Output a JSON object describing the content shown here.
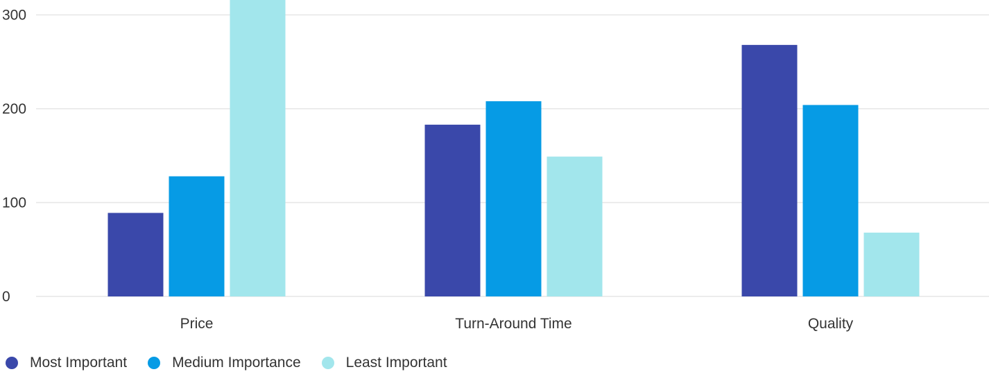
{
  "chart_data": {
    "type": "bar",
    "categories": [
      "Price",
      "Turn-Around Time",
      "Quality"
    ],
    "series": [
      {
        "name": "Most Important",
        "color": "#3a48aa",
        "values": [
          89,
          183,
          268
        ]
      },
      {
        "name": "Medium Importance",
        "color": "#069be5",
        "values": [
          128,
          208,
          204
        ]
      },
      {
        "name": "Least Important",
        "color": "#a2e6ec",
        "values": [
          325,
          149,
          68
        ]
      }
    ],
    "y_ticks": [
      0,
      100,
      200,
      300
    ],
    "ylim": [
      0,
      300
    ],
    "grid": true,
    "legend_position": "bottom-left"
  }
}
